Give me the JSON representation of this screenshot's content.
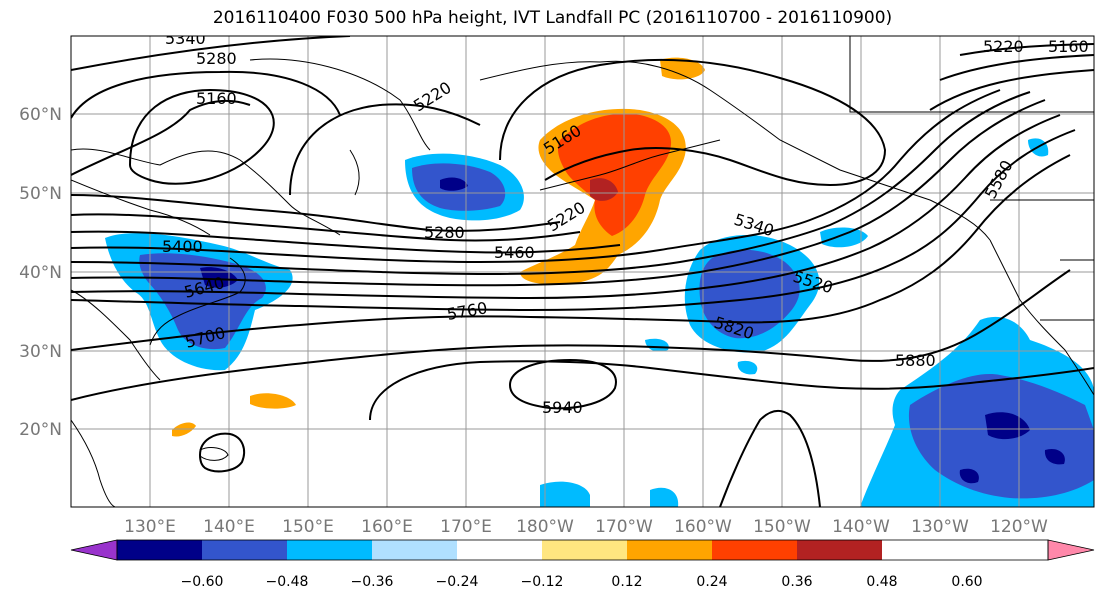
{
  "title": "2016110400 F030 500 hPa height, IVT Landfall PC (2016110700 - 2016110900)",
  "lat_labels": [
    "60°N",
    "50°N",
    "40°N",
    "30°N",
    "20°N"
  ],
  "lon_labels": [
    "130°E",
    "140°E",
    "150°E",
    "160°E",
    "170°E",
    "180°W",
    "170°W",
    "160°W",
    "150°W",
    "140°W",
    "130°W",
    "120°W"
  ],
  "contour_labels": [
    "5340",
    "5280",
    "5160",
    "5220",
    "5160",
    "5220",
    "5400",
    "5280",
    "5460",
    "5340",
    "5520",
    "5640",
    "5700",
    "5760",
    "5820",
    "5880",
    "5940",
    "5580",
    "5220",
    "5160"
  ],
  "colorbar": {
    "ticks": [
      "−0.60",
      "−0.48",
      "−0.36",
      "−0.24",
      "−0.12",
      "0.12",
      "0.24",
      "0.36",
      "0.48",
      "0.60"
    ],
    "colors": [
      "#9933cc",
      "#000088",
      "#3355cc",
      "#00bbff",
      "#b0e0ff",
      "#ffffff",
      "#ffe680",
      "#ffa500",
      "#ff4000",
      "#b22222",
      "#ff88aa"
    ]
  }
}
